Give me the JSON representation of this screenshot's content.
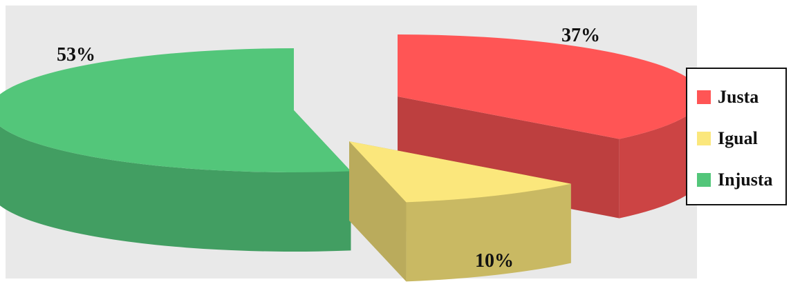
{
  "chart_data": {
    "type": "pie",
    "three_d": true,
    "exploded": true,
    "labels": [
      "Justa",
      "Igual",
      "Injusta"
    ],
    "values": [
      37,
      10,
      53
    ],
    "value_labels": [
      "37%",
      "10%",
      "53%"
    ],
    "colors": [
      "#ff5555",
      "#fbe77c",
      "#53c67a"
    ],
    "legend": {
      "position": "right",
      "entries": [
        "Justa",
        "Igual",
        "Injusta"
      ]
    }
  }
}
